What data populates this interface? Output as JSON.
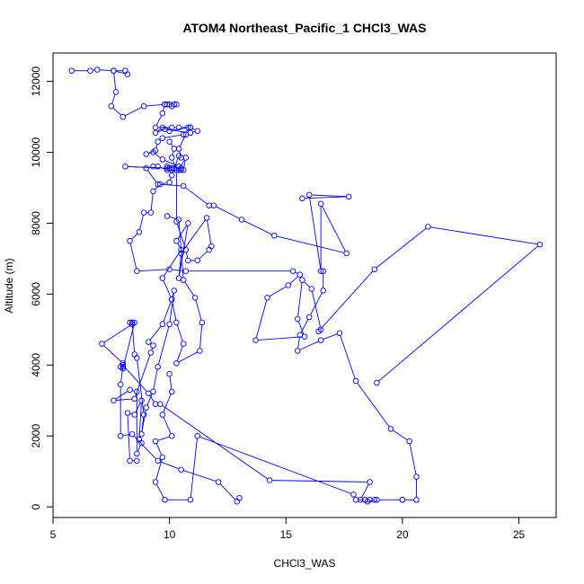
{
  "chart_data": {
    "type": "line",
    "title": "ATOM4 Northeast_Pacific_1 CHCl3_WAS",
    "xlabel": "CHCl3_WAS",
    "ylabel": "Altitude (m)",
    "xlim": [
      5,
      26.6
    ],
    "ylim": [
      -300,
      12800
    ],
    "xticks": [
      5,
      10,
      15,
      20,
      25
    ],
    "yticks": [
      0,
      2000,
      4000,
      6000,
      8000,
      10000,
      12000
    ],
    "grid": false,
    "series_color": "#0000ff",
    "marker": "open-circle",
    "series": [
      {
        "x": [
          5.8,
          6.6,
          6.9,
          7.6,
          8.1,
          8.2,
          7.6,
          7.7,
          7.5,
          8.0,
          8.9,
          9.8
        ],
        "y": [
          12300,
          12300,
          12330,
          12300,
          12300,
          12200,
          12300,
          11700,
          11300,
          11000,
          11300,
          11350
        ]
      },
      {
        "x": [
          10.3,
          10.2,
          10.1,
          10.0,
          9.9,
          9.8,
          9.7,
          9.4,
          10.1,
          10.4,
          10.9,
          10.8,
          10.0,
          9.7,
          9.4,
          9.8,
          10.9,
          11.2,
          10.9,
          10.6,
          9.7,
          9.5,
          9.4,
          9.0,
          9.3,
          9.7,
          10.4,
          10.5,
          10.5,
          10.4,
          10.7,
          10.6,
          10.1,
          10.2,
          9.9,
          10.1,
          8.1,
          9.9,
          10.0,
          9.9,
          9.5,
          9.3,
          9.0,
          9.5,
          10.6,
          11.7,
          11.9,
          13.1,
          14.5,
          17.6,
          16.5,
          16.5,
          16.0,
          17.7,
          15.7
        ],
        "y": [
          11350,
          11350,
          11300,
          11350,
          11350,
          11350,
          11100,
          10700,
          10700,
          10700,
          10700,
          10700,
          10600,
          10700,
          10550,
          10650,
          10550,
          10600,
          10700,
          10500,
          10400,
          10300,
          10050,
          9950,
          10000,
          9800,
          9600,
          9500,
          9550,
          9500,
          9850,
          9500,
          9500,
          9550,
          9600,
          9550,
          9600,
          9550,
          9550,
          9500,
          9600,
          9600,
          9550,
          9100,
          9050,
          8500,
          8500,
          8100,
          7650,
          7150,
          8550,
          6650,
          8800,
          8750,
          8700
        ]
      },
      {
        "x": [
          10.7,
          10.4,
          10.5,
          10.4,
          10.1,
          10.0,
          9.6,
          9.3,
          9.2,
          8.9,
          8.7,
          8.3,
          8.6,
          10.0,
          10.7,
          15.3,
          15.6,
          15.1,
          14.2,
          13.7,
          15.8,
          15.5,
          15.7,
          16.1,
          16.5,
          16.4,
          18.8,
          21.1,
          25.9,
          18.9
        ],
        "y": [
          10500,
          10100,
          9850,
          9900,
          9350,
          9150,
          9100,
          8900,
          8300,
          8300,
          7750,
          7500,
          6650,
          6700,
          6650,
          6650,
          6550,
          6250,
          5900,
          4700,
          4800,
          5300,
          6400,
          6150,
          5000,
          4950,
          6700,
          7900,
          7400,
          3500
        ]
      },
      {
        "x": [
          10.0,
          10.2,
          10.1,
          10.3,
          10.3,
          10.7,
          10.8,
          11.2,
          11.7,
          11.8,
          11.6,
          10.5,
          10.4,
          10.8,
          10.3,
          10.5,
          9.7,
          10.1,
          9.7,
          9.1,
          9.3,
          9.2,
          8.5,
          7.6,
          8.3,
          8.6,
          8.6,
          8.8,
          8.7,
          8.8,
          8.5,
          8.2,
          8.3,
          8.6
        ],
        "y": [
          10300,
          10100,
          9850,
          9500,
          8050,
          7250,
          6950,
          6950,
          7250,
          7350,
          8150,
          7150,
          6450,
          8000,
          7500,
          7250,
          6450,
          5850,
          5150,
          4650,
          4550,
          4350,
          3050,
          3000,
          3300,
          3250,
          1500,
          1800,
          1900,
          3000,
          2600,
          2650,
          1300,
          1300
        ]
      },
      {
        "x": [
          9.9,
          10.4,
          10.6,
          11.1,
          11.4,
          11.3,
          10.3,
          10.6,
          10.3,
          10.1,
          10.2,
          10.0,
          9.5,
          9.3,
          9.0,
          8.8,
          8.9,
          8.6,
          8.5,
          8.4,
          8.4,
          8.4,
          7.1,
          8.0,
          8.0,
          7.9,
          7.9,
          8.4,
          9.5,
          10.5,
          12.1,
          12.9,
          13.0
        ],
        "y": [
          8200,
          8100,
          6400,
          5900,
          5200,
          4400,
          4050,
          4600,
          5200,
          5850,
          6100,
          5150,
          3950,
          3250,
          2800,
          2050,
          2600,
          4200,
          4300,
          5200,
          5200,
          5150,
          4600,
          4050,
          3950,
          3450,
          2000,
          2050,
          1300,
          1050,
          700,
          150,
          250
        ]
      },
      {
        "x": [
          8.3,
          8.5,
          8.0,
          7.9,
          8.0,
          9.1,
          9.4,
          9.6,
          14.3,
          18.6,
          18.2,
          18.4,
          18.6,
          18.8
        ],
        "y": [
          5200,
          5200,
          3900,
          3950,
          4000,
          3200,
          2900,
          2900,
          750,
          700,
          200,
          200,
          200,
          200
        ]
      },
      {
        "x": [
          10.0,
          10.1,
          9.7,
          10.1,
          9.4,
          9.7,
          9.4,
          9.8,
          10.9,
          11.2,
          17.9,
          18.0,
          18.4,
          18.5,
          18.9,
          20.0,
          20.0,
          20.6,
          20.6,
          20.3,
          19.5,
          18.0,
          17.3,
          16.5,
          15.5,
          15.6,
          16.0,
          16.6,
          16.6
        ],
        "y": [
          3750,
          3250,
          2600,
          2000,
          1850,
          1400,
          700,
          200,
          200,
          2000,
          350,
          200,
          200,
          150,
          200,
          200,
          200,
          200,
          850,
          1850,
          2200,
          3550,
          4900,
          4700,
          4400,
          4850,
          5350,
          6100,
          6650
        ]
      }
    ]
  }
}
